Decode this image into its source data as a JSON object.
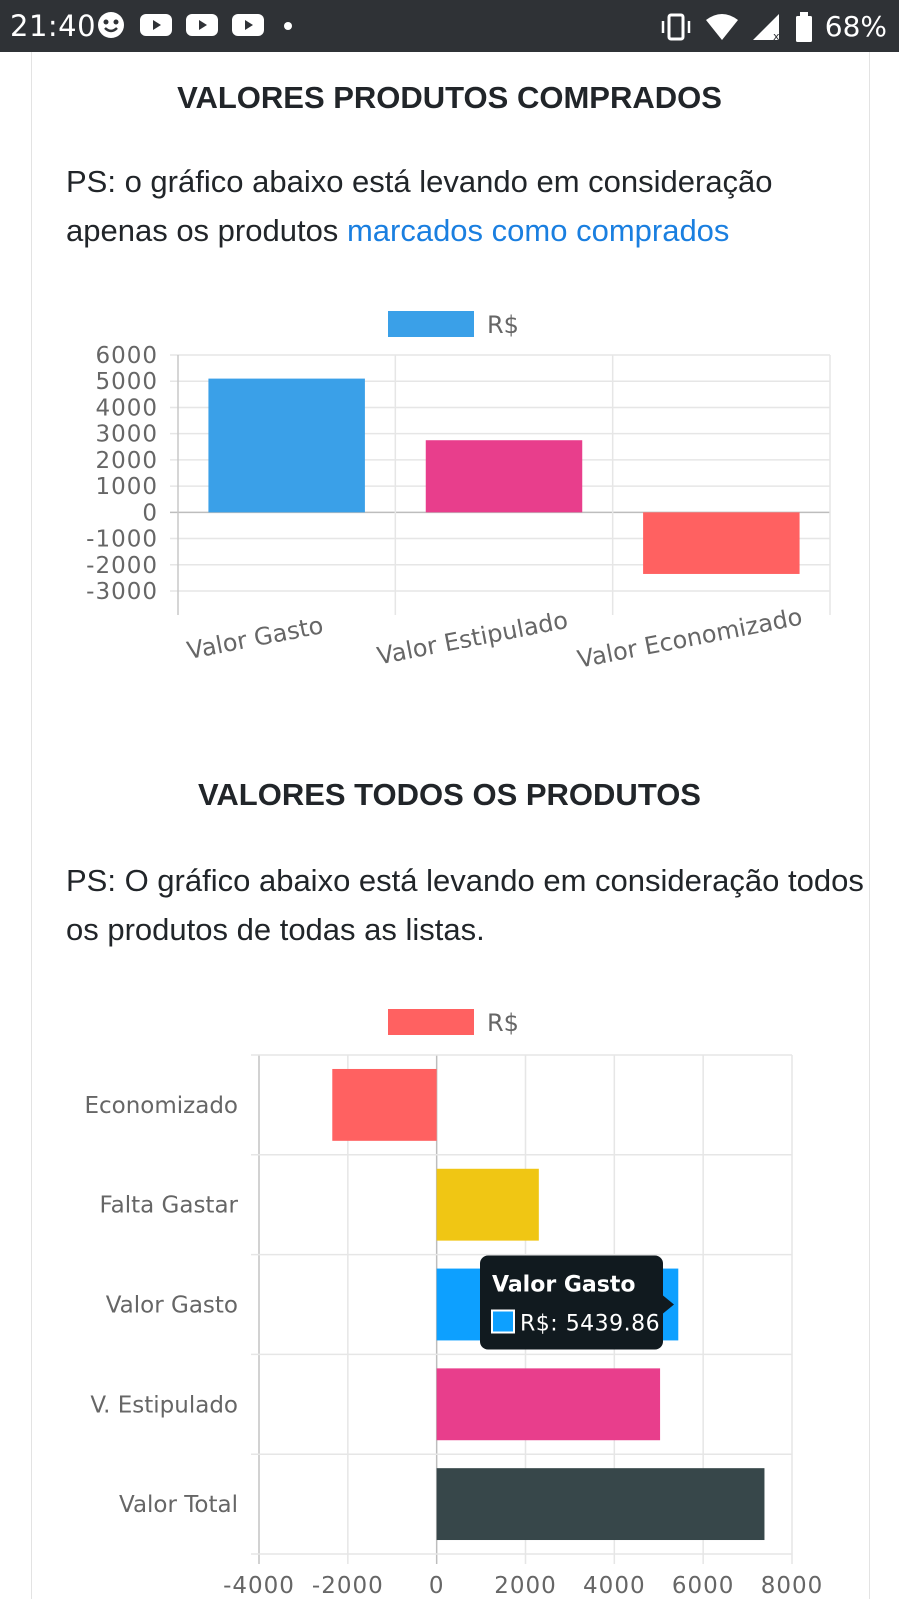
{
  "status_bar": {
    "time": "21:40",
    "battery": "68%",
    "left_icons": [
      "face-icon",
      "youtube-icon",
      "youtube-icon",
      "youtube-icon",
      "dot-icon"
    ],
    "right_icons": [
      "vibrate-icon",
      "wifi-icon",
      "signal-icon",
      "battery-icon"
    ]
  },
  "section1": {
    "title": "VALORES PRODUTOS COMPRADOS",
    "note_prefix": "PS: o gráfico abaixo está levando em consideração apenas os produtos ",
    "note_link": "marcados como comprados"
  },
  "section2": {
    "title": "VALORES TODOS OS PRODUTOS",
    "note": "PS: O gráfico abaixo está levando em consideração todos os produtos de todas as listas."
  },
  "chart_data": [
    {
      "type": "bar",
      "legend": "R$",
      "categories": [
        "Valor Gasto",
        "Valor Estipulado",
        "Valor Economizado"
      ],
      "series": [
        {
          "name": "R$",
          "values": [
            5100,
            2750,
            -2350
          ]
        }
      ],
      "colors": [
        "#3aa0e8",
        "#e83e8c",
        "#ff6161"
      ],
      "ylim": [
        -3000,
        6000
      ],
      "yticks": [
        "6000",
        "5000",
        "4000",
        "3000",
        "2000",
        "1000",
        "0",
        "-1000",
        "-2000",
        "-3000"
      ],
      "grid": true,
      "legend_position": "top"
    },
    {
      "type": "bar",
      "orientation": "horizontal",
      "legend": "R$",
      "categories": [
        "Economizado",
        "Falta Gastar",
        "Valor Gasto",
        "V. Estipulado",
        "Valor Total"
      ],
      "series": [
        {
          "name": "R$",
          "values": [
            -2350,
            2300,
            5439.86,
            5030,
            7380
          ]
        }
      ],
      "colors": [
        "#ff6161",
        "#f0c614",
        "#0da0ff",
        "#e83e8c",
        "#37474a"
      ],
      "xlim": [
        -4000,
        8000
      ],
      "xticks": [
        "-4000",
        "-2000",
        "0",
        "2000",
        "4000",
        "6000",
        "8000"
      ],
      "grid": true,
      "legend_position": "top",
      "tooltip": {
        "title": "Valor Gasto",
        "label": "R$: 5439.86"
      }
    }
  ]
}
